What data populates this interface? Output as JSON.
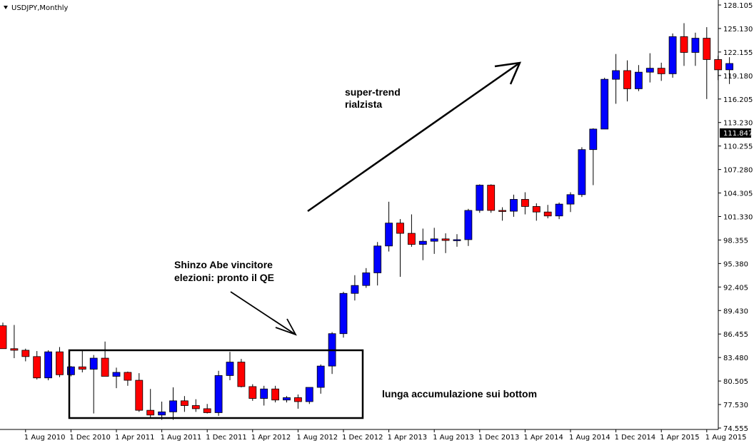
{
  "window": {
    "title": "USDJPY,Monthly",
    "dropdown_icon": "triangle-down-icon"
  },
  "colors": {
    "bull": "#0000ff",
    "bear": "#ff0000",
    "wick": "#000000",
    "background": "#ffffff",
    "price_label_bg": "#000000",
    "price_label_fg": "#ffffff"
  },
  "current_price": "111.847",
  "annotations": {
    "super_trend_line1": "super-trend",
    "super_trend_line2": "rialzista",
    "abe_line1": "Shinzo Abe vincitore",
    "abe_line2": "elezioni: pronto il QE",
    "accumulation": "lunga accumulazione sui bottom"
  },
  "chart_data": {
    "type": "candlestick",
    "title": "USDJPY,Monthly",
    "xlabel": "",
    "ylabel": "",
    "ylim": [
      74.555,
      128.105
    ],
    "y_ticks": [
      "128.105",
      "125.130",
      "122.155",
      "119.180",
      "116.205",
      "113.230",
      "110.255",
      "107.280",
      "104.305",
      "101.330",
      "98.355",
      "95.380",
      "92.405",
      "89.430",
      "86.455",
      "83.480",
      "80.505",
      "77.530",
      "74.555"
    ],
    "x_ticks": [
      "1 Aug 2010",
      "1 Dec 2010",
      "1 Apr 2011",
      "1 Aug 2011",
      "1 Dec 2011",
      "1 Apr 2012",
      "1 Aug 2012",
      "1 Dec 2012",
      "1 Apr 2013",
      "1 Aug 2013",
      "1 Dec 2013",
      "1 Apr 2014",
      "1 Aug 2014",
      "1 Dec 2014",
      "1 Apr 2015",
      "1 Aug 2015"
    ],
    "grid": false,
    "series": [
      {
        "values": [
          {
            "date": "2010-06",
            "o": 87.5,
            "h": 87.9,
            "l": 85.0,
            "c": 84.6
          },
          {
            "date": "2010-07",
            "o": 84.6,
            "h": 87.6,
            "l": 83.4,
            "c": 84.4
          },
          {
            "date": "2010-08",
            "o": 84.4,
            "h": 84.6,
            "l": 83.0,
            "c": 83.6
          },
          {
            "date": "2010-09",
            "o": 83.6,
            "h": 84.3,
            "l": 80.7,
            "c": 80.9
          },
          {
            "date": "2010-10",
            "o": 80.9,
            "h": 84.4,
            "l": 80.6,
            "c": 84.2
          },
          {
            "date": "2010-11",
            "o": 84.2,
            "h": 84.8,
            "l": 81.0,
            "c": 81.3
          },
          {
            "date": "2010-12",
            "o": 81.3,
            "h": 82.4,
            "l": 81.1,
            "c": 82.3
          },
          {
            "date": "2011-01",
            "o": 82.3,
            "h": 84.4,
            "l": 81.6,
            "c": 82.0
          },
          {
            "date": "2011-02",
            "o": 82.0,
            "h": 83.8,
            "l": 76.4,
            "c": 83.4
          },
          {
            "date": "2011-03",
            "o": 83.4,
            "h": 85.5,
            "l": 81.2,
            "c": 81.1
          },
          {
            "date": "2011-04",
            "o": 81.1,
            "h": 82.2,
            "l": 79.6,
            "c": 81.6
          },
          {
            "date": "2011-05",
            "o": 81.6,
            "h": 81.7,
            "l": 79.9,
            "c": 80.6
          },
          {
            "date": "2011-06",
            "o": 80.6,
            "h": 81.5,
            "l": 76.6,
            "c": 76.8
          },
          {
            "date": "2011-07",
            "o": 76.8,
            "h": 79.5,
            "l": 75.9,
            "c": 76.2
          },
          {
            "date": "2011-08",
            "o": 76.2,
            "h": 77.9,
            "l": 75.6,
            "c": 76.6
          },
          {
            "date": "2011-09",
            "o": 76.6,
            "h": 79.7,
            "l": 75.6,
            "c": 78.0
          },
          {
            "date": "2011-10",
            "o": 78.0,
            "h": 78.6,
            "l": 76.6,
            "c": 77.4
          },
          {
            "date": "2011-11",
            "o": 77.4,
            "h": 78.2,
            "l": 76.6,
            "c": 77.0
          },
          {
            "date": "2011-12",
            "o": 77.0,
            "h": 77.6,
            "l": 76.4,
            "c": 76.5
          },
          {
            "date": "2012-01",
            "o": 76.5,
            "h": 81.8,
            "l": 76.1,
            "c": 81.2
          },
          {
            "date": "2012-02",
            "o": 81.2,
            "h": 84.2,
            "l": 80.6,
            "c": 82.9
          },
          {
            "date": "2012-03",
            "o": 82.9,
            "h": 83.3,
            "l": 79.7,
            "c": 79.8
          },
          {
            "date": "2012-04",
            "o": 79.8,
            "h": 80.1,
            "l": 78.0,
            "c": 78.3
          },
          {
            "date": "2012-05",
            "o": 78.3,
            "h": 79.9,
            "l": 77.4,
            "c": 79.5
          },
          {
            "date": "2012-06",
            "o": 79.5,
            "h": 79.9,
            "l": 77.8,
            "c": 78.1
          },
          {
            "date": "2012-07",
            "o": 78.1,
            "h": 78.6,
            "l": 77.8,
            "c": 78.4
          },
          {
            "date": "2012-08",
            "o": 78.4,
            "h": 78.8,
            "l": 77.0,
            "c": 77.9
          },
          {
            "date": "2012-09",
            "o": 77.9,
            "h": 79.7,
            "l": 77.6,
            "c": 79.7
          },
          {
            "date": "2012-10",
            "o": 79.7,
            "h": 82.6,
            "l": 78.9,
            "c": 82.4
          },
          {
            "date": "2012-11",
            "o": 82.4,
            "h": 86.7,
            "l": 81.4,
            "c": 86.5
          },
          {
            "date": "2012-12",
            "o": 86.5,
            "h": 91.8,
            "l": 86.0,
            "c": 91.6
          },
          {
            "date": "2013-01",
            "o": 91.6,
            "h": 93.9,
            "l": 90.7,
            "c": 92.6
          },
          {
            "date": "2013-02",
            "o": 92.6,
            "h": 94.8,
            "l": 92.3,
            "c": 94.2
          },
          {
            "date": "2013-03",
            "o": 94.2,
            "h": 98.1,
            "l": 92.6,
            "c": 97.6
          },
          {
            "date": "2013-04",
            "o": 97.6,
            "h": 103.2,
            "l": 96.9,
            "c": 100.5
          },
          {
            "date": "2013-05",
            "o": 100.5,
            "h": 101.0,
            "l": 93.7,
            "c": 99.2
          },
          {
            "date": "2013-06",
            "o": 99.2,
            "h": 101.6,
            "l": 97.5,
            "c": 97.8
          },
          {
            "date": "2013-07",
            "o": 97.8,
            "h": 99.8,
            "l": 95.8,
            "c": 98.2
          },
          {
            "date": "2013-08",
            "o": 98.2,
            "h": 99.9,
            "l": 96.6,
            "c": 98.5
          },
          {
            "date": "2013-09",
            "o": 98.5,
            "h": 99.2,
            "l": 96.7,
            "c": 98.3
          },
          {
            "date": "2013-10",
            "o": 98.3,
            "h": 99.1,
            "l": 97.5,
            "c": 98.4
          },
          {
            "date": "2013-11",
            "o": 98.4,
            "h": 102.3,
            "l": 97.6,
            "c": 102.1
          },
          {
            "date": "2013-12",
            "o": 102.1,
            "h": 105.4,
            "l": 101.8,
            "c": 105.3
          },
          {
            "date": "2014-01",
            "o": 105.3,
            "h": 105.4,
            "l": 101.8,
            "c": 102.1
          },
          {
            "date": "2014-02",
            "o": 102.1,
            "h": 102.5,
            "l": 100.8,
            "c": 102.0
          },
          {
            "date": "2014-03",
            "o": 102.0,
            "h": 104.1,
            "l": 101.3,
            "c": 103.5
          },
          {
            "date": "2014-04",
            "o": 103.5,
            "h": 104.4,
            "l": 101.6,
            "c": 102.6
          },
          {
            "date": "2014-05",
            "o": 102.6,
            "h": 103.0,
            "l": 100.8,
            "c": 101.9
          },
          {
            "date": "2014-06",
            "o": 101.9,
            "h": 102.8,
            "l": 101.1,
            "c": 101.4
          },
          {
            "date": "2014-07",
            "o": 101.4,
            "h": 103.1,
            "l": 101.0,
            "c": 102.9
          },
          {
            "date": "2014-08",
            "o": 102.9,
            "h": 104.4,
            "l": 101.9,
            "c": 104.1
          },
          {
            "date": "2014-09",
            "o": 104.1,
            "h": 110.1,
            "l": 103.8,
            "c": 109.8
          },
          {
            "date": "2014-10",
            "o": 109.8,
            "h": 112.5,
            "l": 105.3,
            "c": 112.4
          },
          {
            "date": "2014-11",
            "o": 112.4,
            "h": 118.9,
            "l": 112.4,
            "c": 118.7
          },
          {
            "date": "2014-12",
            "o": 118.7,
            "h": 121.9,
            "l": 115.6,
            "c": 119.8
          },
          {
            "date": "2015-01",
            "o": 119.8,
            "h": 121.1,
            "l": 115.9,
            "c": 117.5
          },
          {
            "date": "2015-02",
            "o": 117.5,
            "h": 120.5,
            "l": 117.2,
            "c": 119.6
          },
          {
            "date": "2015-03",
            "o": 119.6,
            "h": 122.0,
            "l": 118.3,
            "c": 120.1
          },
          {
            "date": "2015-04",
            "o": 120.1,
            "h": 120.8,
            "l": 118.5,
            "c": 119.4
          },
          {
            "date": "2015-05",
            "o": 119.4,
            "h": 124.5,
            "l": 118.9,
            "c": 124.1
          },
          {
            "date": "2015-06",
            "o": 124.1,
            "h": 125.8,
            "l": 120.4,
            "c": 122.1
          },
          {
            "date": "2015-07",
            "o": 122.1,
            "h": 124.6,
            "l": 120.4,
            "c": 123.9
          },
          {
            "date": "2015-08",
            "o": 123.9,
            "h": 125.3,
            "l": 116.2,
            "c": 121.2
          },
          {
            "date": "2015-09",
            "o": 121.2,
            "h": 121.7,
            "l": 118.6,
            "c": 119.9
          },
          {
            "date": "2015-10",
            "o": 119.9,
            "h": 121.5,
            "l": 118.1,
            "c": 120.7
          }
        ]
      }
    ]
  }
}
